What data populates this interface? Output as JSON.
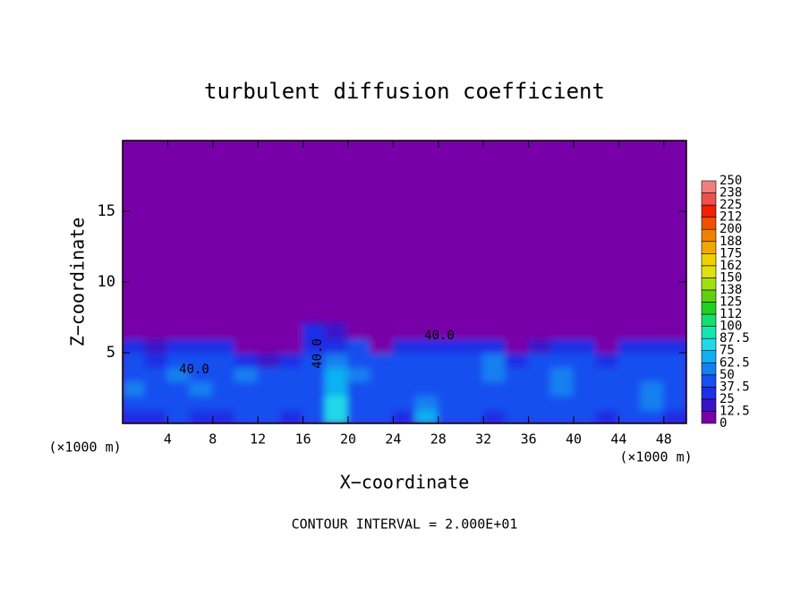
{
  "chart_data": {
    "type": "contour",
    "title": "turbulent diffusion coefficient",
    "xlabel": "X−coordinate",
    "ylabel": "Z−coordinate",
    "x_unit": "(×1000 m)",
    "y_unit": "(×1000 m)",
    "footer": "CONTOUR INTERVAL = 2.000E+01",
    "annotations": [
      "40.0",
      "40.0",
      "40.0"
    ],
    "xlim": [
      0,
      50
    ],
    "ylim": [
      0,
      20
    ],
    "xticks": [
      4,
      8,
      12,
      16,
      20,
      24,
      28,
      32,
      36,
      40,
      44,
      48
    ],
    "yticks": [
      5,
      10,
      15
    ],
    "x": [
      1,
      3,
      5,
      7,
      9,
      11,
      13,
      15,
      17,
      19,
      21,
      23,
      25,
      27,
      29,
      31,
      33,
      35,
      37,
      39,
      41,
      43,
      45,
      47,
      49
    ],
    "y": [
      0.5,
      1.5,
      2.5,
      3.5,
      4.5,
      5.5,
      6.5
    ],
    "z": [
      [
        35,
        30,
        40,
        35,
        35,
        40,
        45,
        35,
        40,
        80,
        40,
        40,
        35,
        70,
        40,
        40,
        35,
        40,
        40,
        45,
        40,
        35,
        40,
        40,
        35
      ],
      [
        40,
        40,
        45,
        40,
        40,
        40,
        40,
        40,
        45,
        75,
        40,
        40,
        40,
        60,
        40,
        40,
        40,
        45,
        45,
        40,
        40,
        40,
        40,
        50,
        40
      ],
      [
        50,
        40,
        40,
        60,
        40,
        45,
        40,
        40,
        45,
        70,
        45,
        40,
        40,
        40,
        40,
        45,
        40,
        40,
        45,
        50,
        40,
        40,
        40,
        50,
        40
      ],
      [
        45,
        40,
        55,
        40,
        40,
        50,
        40,
        40,
        45,
        70,
        50,
        45,
        40,
        40,
        40,
        40,
        60,
        40,
        40,
        60,
        40,
        40,
        45,
        40,
        45
      ],
      [
        40,
        35,
        40,
        45,
        40,
        35,
        20,
        35,
        40,
        60,
        45,
        40,
        40,
        45,
        40,
        40,
        50,
        35,
        40,
        45,
        40,
        35,
        40,
        45,
        40
      ],
      [
        30,
        20,
        35,
        35,
        30,
        10,
        0,
        10,
        35,
        30,
        40,
        0,
        30,
        35,
        35,
        30,
        35,
        0,
        20,
        35,
        30,
        0,
        30,
        35,
        30
      ],
      [
        0,
        0,
        0,
        0,
        0,
        0,
        0,
        0,
        30,
        20,
        0,
        0,
        0,
        0,
        0,
        0,
        0,
        0,
        0,
        0,
        0,
        0,
        0,
        0,
        0
      ]
    ],
    "levels": [
      0,
      12.5,
      25,
      37.5,
      50,
      62.5,
      75,
      87.5,
      100,
      {
        "value": 112.5,
        "label": "112"
      },
      125,
      {
        "value": 137.5,
        "label": "138"
      },
      150,
      {
        "value": 162.5,
        "label": "162"
      },
      175,
      {
        "value": 187.5,
        "label": "188"
      },
      200,
      {
        "value": 212.5,
        "label": "212"
      },
      225,
      {
        "value": 237.5,
        "label": "238"
      },
      250
    ],
    "colors": [
      "#7800a8",
      "#3a12c8",
      "#1e2ee6",
      "#1650f0",
      "#1480f0",
      "#10b0f0",
      "#20d8e8",
      "#10e8b0",
      "#10e070",
      "#20d020",
      "#60d010",
      "#a0e010",
      "#e0e010",
      "#f0d000",
      "#f0a800",
      "#f08000",
      "#f05000",
      "#f02000",
      "#f05050",
      "#f08080"
    ]
  }
}
